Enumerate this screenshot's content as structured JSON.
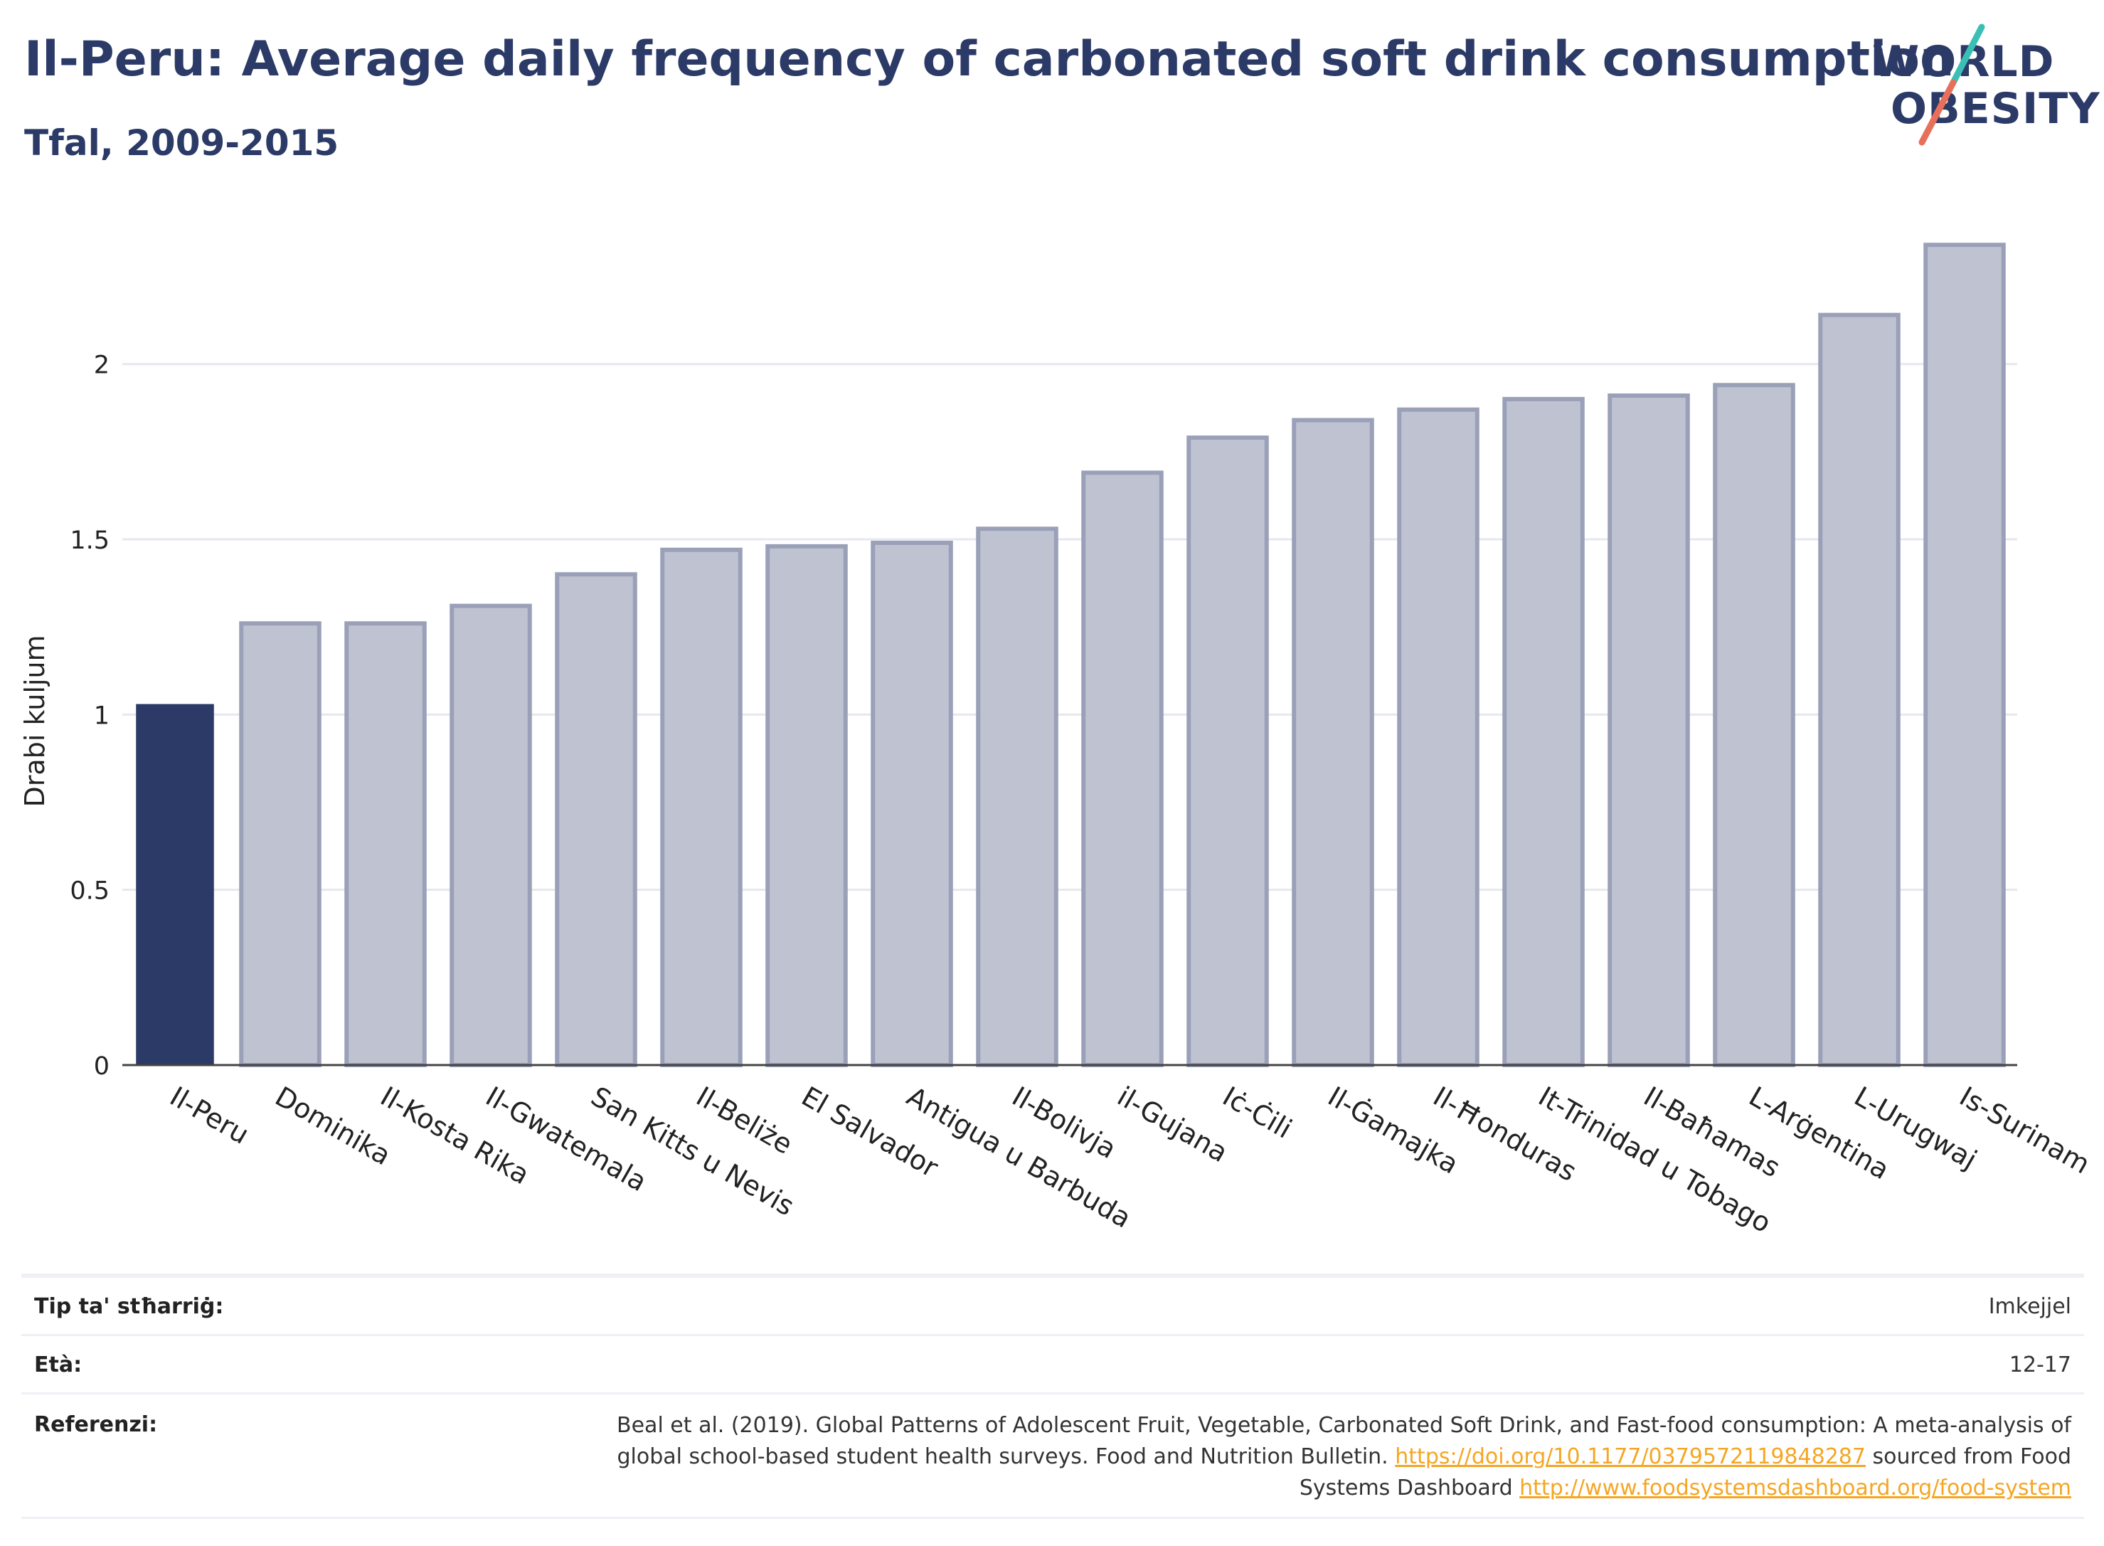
{
  "header": {
    "title": "Il-Peru: Average daily frequency of carbonated soft drink consumption",
    "subtitle": "Tfal, 2009-2015"
  },
  "logo": {
    "line1": "WORLD",
    "line2": "OBESITY",
    "accent_teal": "#3bbfb4",
    "accent_coral": "#e8705a"
  },
  "colors": {
    "highlight_bar": "#2b3a67",
    "other_bar_fill": "#bfc3d1",
    "other_bar_stroke": "#9aa0b8",
    "title": "#2b3a67"
  },
  "chart_data": {
    "type": "bar",
    "title": "Il-Peru: Average daily frequency of carbonated soft drink consumption",
    "subtitle": "Tfal, 2009-2015",
    "xlabel": "",
    "ylabel": "Drabi kuljum",
    "ylim": [
      0,
      2.45
    ],
    "yticks": [
      0,
      0.5,
      1,
      1.5,
      2
    ],
    "ytick_labels": [
      "0",
      "0.5",
      "1",
      "1.5",
      "2"
    ],
    "grid": true,
    "highlight": "Il-Peru",
    "categories": [
      "Il-Peru",
      "Dominika",
      "Il-Kosta Rika",
      "Il-Gwatemala",
      "San Kitts u Nevis",
      "Il-Beliże",
      "El Salvador",
      "Antigua u Barbuda",
      "Il-Bolivja",
      "il-Gujana",
      "Iċ-Ċili",
      "Il-Ġamajka",
      "Il-Ħonduras",
      "It-Trinidad u Tobago",
      "Il-Baħamas",
      "L-Arġentina",
      "L-Urugwaj",
      "Is-Surinam"
    ],
    "values": [
      1.03,
      1.26,
      1.26,
      1.31,
      1.4,
      1.47,
      1.48,
      1.49,
      1.53,
      1.69,
      1.79,
      1.84,
      1.87,
      1.9,
      1.91,
      1.94,
      2.14,
      2.34
    ]
  },
  "meta": {
    "survey_type_label": "Tip ta' stħarriġ:",
    "survey_type_value": "Imkejjel",
    "age_label": "Età:",
    "age_value": "12-17",
    "ref_label": "Referenzi:",
    "ref_text_1": "Beal et al. (2019). Global Patterns of Adolescent Fruit, Vegetable, Carbonated Soft Drink, and Fast-food consumption: A meta-analysis of global school-based student health surveys. Food and Nutrition Bulletin.",
    "ref_link_1": "https://doi.org/10.1177/0379572119848287",
    "ref_text_2": "sourced from Food Systems Dashboard",
    "ref_link_2": "http://www.foodsystemsdashboard.org/food-system"
  }
}
